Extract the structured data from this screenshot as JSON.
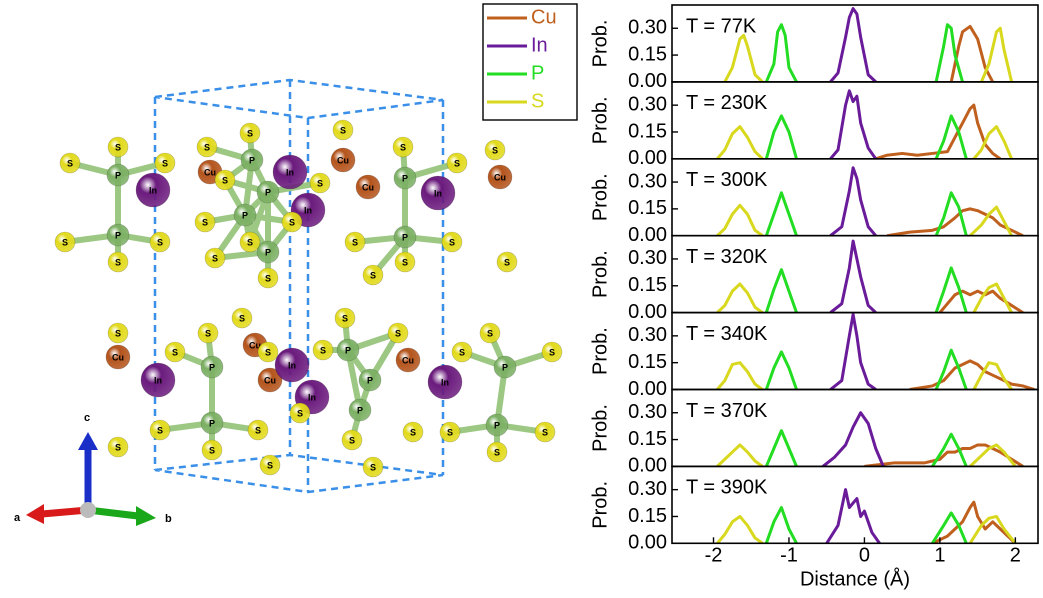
{
  "structure": {
    "atoms": [
      "S",
      "S",
      "S",
      "P",
      "In",
      "S",
      "P",
      "S",
      "S",
      "S",
      "S",
      "Cu",
      "P",
      "In",
      "S",
      "S",
      "P",
      "In",
      "S",
      "P",
      "S",
      "S",
      "P",
      "S",
      "S",
      "S",
      "S",
      "S",
      "Cu",
      "Cu",
      "P",
      "In",
      "S",
      "Cu",
      "S",
      "P",
      "S",
      "S",
      "S",
      "S",
      "S",
      "Cu",
      "S",
      "In",
      "S",
      "P",
      "S",
      "Cu",
      "S",
      "Cu",
      "In",
      "In",
      "S",
      "P",
      "S",
      "Cu",
      "P",
      "In",
      "S",
      "S",
      "P",
      "S",
      "S",
      "P",
      "S",
      "S",
      "S",
      "S",
      "S",
      "S",
      "S",
      "P",
      "S",
      "S",
      "P",
      "S",
      "S",
      "S"
    ],
    "atom_colors": {
      "S": "#e2da1c",
      "P": "#7cb064",
      "In": "#6b1b7d",
      "Cu": "#b4541c"
    },
    "axes": {
      "a": "a",
      "b": "b",
      "c": "c"
    }
  },
  "chart_data": [
    {
      "type": "line",
      "annotation": "T = 77K",
      "ylabel": "Prob.",
      "xlim": [
        -2.55,
        2.3
      ],
      "ylim": [
        0,
        0.43
      ],
      "yticks": [
        {
          "value": 0,
          "label": "0.00"
        },
        {
          "value": 0.15,
          "label": "0.15"
        },
        {
          "value": 0.3,
          "label": "0.30"
        }
      ],
      "legend": "outside-left",
      "series": [
        {
          "name": "Cu",
          "color": "#c0601e",
          "x": [
            1.15,
            1.25,
            1.3,
            1.4,
            1.5,
            1.6,
            1.7
          ],
          "values": [
            0,
            0.2,
            0.28,
            0.31,
            0.24,
            0.08,
            0
          ]
        },
        {
          "name": "In",
          "color": "#6a1b9a",
          "x": [
            -0.45,
            -0.35,
            -0.25,
            -0.2,
            -0.15,
            -0.1,
            -0.05,
            0.05,
            0.15
          ],
          "values": [
            0,
            0.05,
            0.25,
            0.36,
            0.41,
            0.38,
            0.25,
            0.04,
            0
          ]
        },
        {
          "name": "P",
          "color": "#22dd22",
          "x": [
            -1.3,
            -1.2,
            -1.15,
            -1.1,
            -1.05,
            -1.0,
            -0.9,
            0,
            0.95,
            1.05,
            1.1,
            1.15,
            1.2,
            1.3
          ],
          "values": [
            0,
            0.1,
            0.28,
            0.32,
            0.26,
            0.08,
            0,
            null,
            0,
            0.2,
            0.32,
            0.3,
            0.15,
            0
          ]
        },
        {
          "name": "S",
          "color": "#d8d81e",
          "x": [
            -1.85,
            -1.75,
            -1.65,
            -1.6,
            -1.55,
            -1.45,
            -1.35,
            0,
            1.55,
            1.65,
            1.75,
            1.8,
            1.85,
            1.95
          ],
          "values": [
            0,
            0.08,
            0.24,
            0.26,
            0.2,
            0.04,
            0,
            null,
            0,
            0.1,
            0.28,
            0.3,
            0.18,
            0
          ]
        }
      ]
    },
    {
      "type": "line",
      "annotation": "T = 230K",
      "ylabel": "Prob.",
      "xlim": [
        -2.55,
        2.3
      ],
      "ylim": [
        0,
        0.43
      ],
      "yticks": [
        {
          "value": 0,
          "label": "0.00"
        },
        {
          "value": 0.15,
          "label": "0.15"
        },
        {
          "value": 0.3,
          "label": "0.30"
        }
      ],
      "series": [
        {
          "name": "Cu",
          "color": "#c0601e",
          "x": [
            0.15,
            0.3,
            0.5,
            0.7,
            0.9,
            1.1,
            1.2,
            1.3,
            1.4,
            1.45,
            1.5,
            1.6,
            1.7,
            1.8
          ],
          "values": [
            0,
            0.02,
            0.03,
            0.02,
            0.03,
            0.04,
            0.12,
            0.2,
            0.28,
            0.3,
            0.2,
            0.08,
            0.03,
            0
          ]
        },
        {
          "name": "In",
          "color": "#6a1b9a",
          "x": [
            -0.45,
            -0.35,
            -0.25,
            -0.2,
            -0.15,
            -0.1,
            -0.05,
            0.05,
            0.15
          ],
          "values": [
            0,
            0.05,
            0.3,
            0.38,
            0.32,
            0.35,
            0.2,
            0.06,
            0
          ]
        },
        {
          "name": "P",
          "color": "#22dd22",
          "x": [
            -1.3,
            -1.2,
            -1.1,
            -1.0,
            -0.9,
            0,
            0.95,
            1.05,
            1.15,
            1.25,
            1.35
          ],
          "values": [
            0,
            0.15,
            0.24,
            0.15,
            0,
            null,
            0,
            0.1,
            0.24,
            0.15,
            0
          ]
        },
        {
          "name": "S",
          "color": "#d8d81e",
          "x": [
            -1.95,
            -1.85,
            -1.75,
            -1.65,
            -1.55,
            -1.45,
            -1.35,
            0,
            1.45,
            1.55,
            1.65,
            1.75,
            1.85,
            1.95
          ],
          "values": [
            0,
            0.05,
            0.14,
            0.18,
            0.12,
            0.04,
            0,
            null,
            0,
            0.05,
            0.14,
            0.18,
            0.1,
            0
          ]
        }
      ]
    },
    {
      "type": "line",
      "annotation": "T = 300K",
      "ylabel": "Prob.",
      "xlim": [
        -2.55,
        2.3
      ],
      "ylim": [
        0,
        0.43
      ],
      "yticks": [
        {
          "value": 0,
          "label": "0.00"
        },
        {
          "value": 0.15,
          "label": "0.15"
        },
        {
          "value": 0.3,
          "label": "0.30"
        }
      ],
      "series": [
        {
          "name": "Cu",
          "color": "#c0601e",
          "x": [
            0.3,
            0.6,
            0.9,
            1.05,
            1.2,
            1.3,
            1.4,
            1.5,
            1.6,
            1.7,
            1.8,
            1.95,
            2.1
          ],
          "values": [
            0,
            0.02,
            0.03,
            0.05,
            0.1,
            0.14,
            0.15,
            0.14,
            0.12,
            0.1,
            0.06,
            0.03,
            0
          ]
        },
        {
          "name": "In",
          "color": "#6a1b9a",
          "x": [
            -0.45,
            -0.3,
            -0.2,
            -0.15,
            -0.1,
            -0.05,
            0.05,
            0.15
          ],
          "values": [
            0,
            0.05,
            0.25,
            0.38,
            0.32,
            0.2,
            0.05,
            0
          ]
        },
        {
          "name": "P",
          "color": "#22dd22",
          "x": [
            -1.3,
            -1.2,
            -1.1,
            -1.0,
            -0.9,
            0,
            0.95,
            1.05,
            1.15,
            1.25,
            1.35
          ],
          "values": [
            0,
            0.12,
            0.24,
            0.12,
            0,
            null,
            0,
            0.1,
            0.24,
            0.16,
            0
          ]
        },
        {
          "name": "S",
          "color": "#d8d81e",
          "x": [
            -1.95,
            -1.85,
            -1.75,
            -1.65,
            -1.55,
            -1.45,
            -1.35,
            0,
            1.4,
            1.55,
            1.65,
            1.75,
            1.85,
            1.95
          ],
          "values": [
            0,
            0.04,
            0.12,
            0.17,
            0.12,
            0.03,
            0,
            null,
            0,
            0.06,
            0.12,
            0.16,
            0.08,
            0
          ]
        }
      ]
    },
    {
      "type": "line",
      "annotation": "T = 320K",
      "ylabel": "Prob.",
      "xlim": [
        -2.55,
        2.3
      ],
      "ylim": [
        0,
        0.43
      ],
      "yticks": [
        {
          "value": 0,
          "label": "0.00"
        },
        {
          "value": 0.15,
          "label": "0.15"
        },
        {
          "value": 0.3,
          "label": "0.30"
        }
      ],
      "series": [
        {
          "name": "Cu",
          "color": "#c0601e",
          "x": [
            1.0,
            1.1,
            1.2,
            1.3,
            1.4,
            1.5,
            1.6,
            1.7,
            1.8,
            1.95,
            2.1
          ],
          "values": [
            0,
            0.05,
            0.1,
            0.12,
            0.1,
            0.12,
            0.1,
            0.12,
            0.08,
            0.04,
            0
          ]
        },
        {
          "name": "In",
          "color": "#6a1b9a",
          "x": [
            -0.45,
            -0.3,
            -0.2,
            -0.15,
            -0.1,
            -0.05,
            0.05,
            0.15
          ],
          "values": [
            0,
            0.05,
            0.25,
            0.4,
            0.3,
            0.2,
            0.04,
            0
          ]
        },
        {
          "name": "P",
          "color": "#22dd22",
          "x": [
            -1.3,
            -1.2,
            -1.1,
            -1.0,
            -0.9,
            0,
            0.95,
            1.05,
            1.15,
            1.25,
            1.35
          ],
          "values": [
            0,
            0.13,
            0.24,
            0.12,
            0,
            null,
            0,
            0.12,
            0.25,
            0.14,
            0
          ]
        },
        {
          "name": "S",
          "color": "#d8d81e",
          "x": [
            -1.95,
            -1.85,
            -1.75,
            -1.65,
            -1.55,
            -1.45,
            -1.35,
            0,
            1.45,
            1.55,
            1.65,
            1.75,
            1.85,
            1.95
          ],
          "values": [
            0,
            0.04,
            0.12,
            0.16,
            0.11,
            0.03,
            0,
            null,
            0,
            0.08,
            0.14,
            0.16,
            0.08,
            0
          ]
        }
      ]
    },
    {
      "type": "line",
      "annotation": "T = 340K",
      "ylabel": "Prob.",
      "xlim": [
        -2.55,
        2.3
      ],
      "ylim": [
        0,
        0.43
      ],
      "yticks": [
        {
          "value": 0,
          "label": "0.00"
        },
        {
          "value": 0.15,
          "label": "0.15"
        },
        {
          "value": 0.3,
          "label": "0.30"
        }
      ],
      "series": [
        {
          "name": "Cu",
          "color": "#c0601e",
          "x": [
            0.6,
            0.9,
            1.05,
            1.2,
            1.3,
            1.4,
            1.5,
            1.6,
            1.7,
            1.8,
            1.95,
            2.1,
            2.25
          ],
          "values": [
            0,
            0.02,
            0.05,
            0.12,
            0.14,
            0.16,
            0.14,
            0.1,
            0.08,
            0.06,
            0.03,
            0.02,
            0
          ]
        },
        {
          "name": "In",
          "color": "#6a1b9a",
          "x": [
            -0.45,
            -0.3,
            -0.2,
            -0.15,
            -0.1,
            -0.05,
            0.05,
            0.15
          ],
          "values": [
            0,
            0.05,
            0.3,
            0.42,
            0.3,
            0.15,
            0.03,
            0
          ]
        },
        {
          "name": "P",
          "color": "#22dd22",
          "x": [
            -1.3,
            -1.2,
            -1.1,
            -1.0,
            -0.9,
            0,
            0.95,
            1.05,
            1.15,
            1.25,
            1.35
          ],
          "values": [
            0,
            0.12,
            0.21,
            0.12,
            0,
            null,
            0,
            0.1,
            0.22,
            0.12,
            0
          ]
        },
        {
          "name": "S",
          "color": "#d8d81e",
          "x": [
            -1.95,
            -1.85,
            -1.75,
            -1.65,
            -1.55,
            -1.45,
            -1.35,
            0,
            1.45,
            1.55,
            1.65,
            1.75,
            1.85,
            1.95
          ],
          "values": [
            0,
            0.05,
            0.14,
            0.15,
            0.1,
            0.03,
            0,
            null,
            0,
            0.08,
            0.15,
            0.14,
            0.06,
            0
          ]
        }
      ]
    },
    {
      "type": "line",
      "annotation": "T = 370K",
      "ylabel": "Prob.",
      "xlim": [
        -2.55,
        2.3
      ],
      "ylim": [
        0,
        0.43
      ],
      "yticks": [
        {
          "value": 0,
          "label": "0.00"
        },
        {
          "value": 0.15,
          "label": "0.15"
        },
        {
          "value": 0.3,
          "label": "0.30"
        }
      ],
      "series": [
        {
          "name": "Cu",
          "color": "#c0601e",
          "x": [
            0.0,
            0.4,
            0.8,
            1.0,
            1.1,
            1.2,
            1.3,
            1.4,
            1.5,
            1.6,
            1.7,
            1.8,
            1.95,
            2.1
          ],
          "values": [
            0,
            0.02,
            0.02,
            0.04,
            0.08,
            0.08,
            0.1,
            0.1,
            0.12,
            0.12,
            0.1,
            0.08,
            0.04,
            0
          ]
        },
        {
          "name": "In",
          "color": "#6a1b9a",
          "x": [
            -0.55,
            -0.4,
            -0.25,
            -0.15,
            -0.05,
            0.05,
            0.15,
            0.25
          ],
          "values": [
            0,
            0.05,
            0.12,
            0.22,
            0.3,
            0.24,
            0.1,
            0
          ]
        },
        {
          "name": "P",
          "color": "#22dd22",
          "x": [
            -1.3,
            -1.2,
            -1.1,
            -1.0,
            -0.9,
            0,
            0.9,
            1.05,
            1.15,
            1.25,
            1.35
          ],
          "values": [
            0,
            0.1,
            0.2,
            0.1,
            0,
            null,
            0,
            0.1,
            0.18,
            0.1,
            0
          ]
        },
        {
          "name": "S",
          "color": "#d8d81e",
          "x": [
            -1.95,
            -1.85,
            -1.75,
            -1.65,
            -1.55,
            -1.45,
            -1.35,
            0,
            1.4,
            1.55,
            1.65,
            1.75,
            1.85,
            2.0
          ],
          "values": [
            0,
            0.04,
            0.08,
            0.12,
            0.08,
            0.03,
            0,
            null,
            0,
            0.06,
            0.1,
            0.12,
            0.08,
            0
          ]
        }
      ]
    },
    {
      "type": "line",
      "annotation": "T = 390K",
      "ylabel": "Prob.",
      "xlim": [
        -2.55,
        2.3
      ],
      "ylim": [
        0,
        0.43
      ],
      "yticks": [
        {
          "value": 0,
          "label": "0.00"
        },
        {
          "value": 0.15,
          "label": "0.15"
        },
        {
          "value": 0.3,
          "label": "0.30"
        }
      ],
      "xticks": [
        -2,
        -1,
        0,
        1,
        2
      ],
      "xlabel": "Distance (Å)",
      "series": [
        {
          "name": "Cu",
          "color": "#c0601e",
          "x": [
            0.9,
            1.1,
            1.2,
            1.3,
            1.4,
            1.45,
            1.5,
            1.6,
            1.7,
            1.8,
            1.9,
            2.0
          ],
          "values": [
            0,
            0.04,
            0.08,
            0.12,
            0.2,
            0.23,
            0.15,
            0.08,
            0.12,
            0.08,
            0.04,
            0
          ]
        },
        {
          "name": "In",
          "color": "#6a1b9a",
          "x": [
            -0.5,
            -0.35,
            -0.25,
            -0.2,
            -0.1,
            -0.05,
            0.0,
            0.1,
            0.2
          ],
          "values": [
            0,
            0.1,
            0.3,
            0.2,
            0.25,
            0.15,
            0.18,
            0.06,
            0
          ]
        },
        {
          "name": "P",
          "color": "#22dd22",
          "x": [
            -1.3,
            -1.2,
            -1.1,
            -1.0,
            -0.9,
            0,
            0.9,
            1.05,
            1.15,
            1.25,
            1.35
          ],
          "values": [
            0,
            0.12,
            0.2,
            0.08,
            0,
            null,
            0,
            0.1,
            0.17,
            0.1,
            0
          ]
        },
        {
          "name": "S",
          "color": "#d8d81e",
          "x": [
            -1.95,
            -1.85,
            -1.75,
            -1.65,
            -1.55,
            -1.45,
            -1.35,
            0,
            1.4,
            1.55,
            1.65,
            1.75,
            1.85,
            2.0
          ],
          "values": [
            0,
            0.05,
            0.12,
            0.15,
            0.1,
            0.03,
            0,
            null,
            0,
            0.1,
            0.14,
            0.15,
            0.08,
            0
          ]
        }
      ]
    }
  ]
}
